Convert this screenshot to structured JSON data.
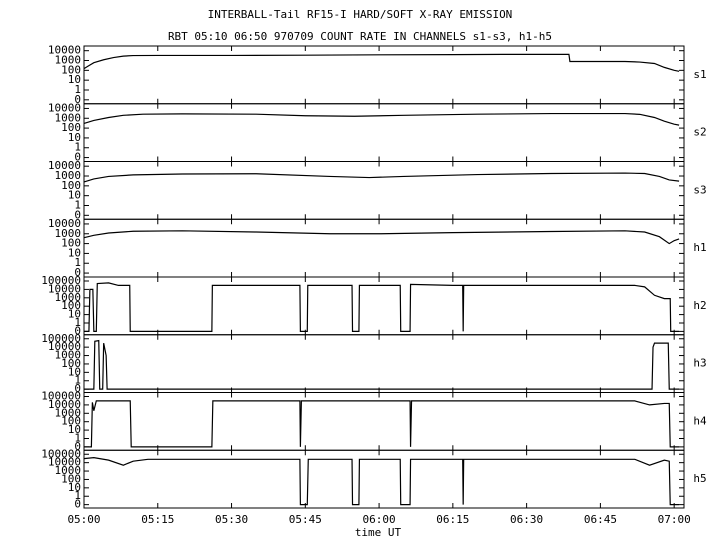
{
  "chart_data": {
    "type": "line",
    "title": "INTERBALL-Tail RF15-I HARD/SOFT X-RAY EMISSION",
    "subtitle": "RBT 05:10 06:50 970709  COUNT RATE IN CHANNELS s1-s3, h1-h5",
    "xlabel": "time UT",
    "yscale": "log",
    "color": "#000000",
    "xlim": [
      300,
      422
    ],
    "xticks": [
      {
        "value": 300,
        "label": "05:00"
      },
      {
        "value": 315,
        "label": "05:15"
      },
      {
        "value": 330,
        "label": "05:30"
      },
      {
        "value": 345,
        "label": "05:45"
      },
      {
        "value": 360,
        "label": "06:00"
      },
      {
        "value": 375,
        "label": "06:15"
      },
      {
        "value": 390,
        "label": "06:30"
      },
      {
        "value": 405,
        "label": "06:45"
      },
      {
        "value": 420,
        "label": "07:00"
      }
    ],
    "panels": [
      {
        "name": "s1",
        "ylim": [
          0,
          30000
        ],
        "yticks": [
          0,
          1,
          10,
          100,
          1000,
          10000
        ],
        "x": [
          300,
          301,
          302,
          304,
          306,
          308,
          310,
          315,
          320,
          330,
          345,
          360,
          375,
          385,
          398.6,
          398.8,
          410,
          413,
          416,
          418,
          420,
          421
        ],
        "values": [
          150,
          300,
          600,
          1200,
          2000,
          2800,
          3200,
          3300,
          3300,
          3300,
          3500,
          3800,
          4000,
          4200,
          4300,
          800,
          800,
          700,
          500,
          200,
          100,
          80
        ]
      },
      {
        "name": "s2",
        "ylim": [
          0,
          30000
        ],
        "yticks": [
          0,
          1,
          10,
          100,
          1000,
          10000
        ],
        "x": [
          300,
          302,
          305,
          308,
          312,
          320,
          335,
          345,
          355,
          365,
          380,
          395,
          410,
          413,
          416,
          418,
          420,
          421
        ],
        "values": [
          300,
          600,
          1200,
          2000,
          2600,
          2800,
          2600,
          1800,
          1600,
          2000,
          2600,
          3000,
          3000,
          2500,
          1200,
          500,
          250,
          200
        ]
      },
      {
        "name": "s3",
        "ylim": [
          0,
          30000
        ],
        "yticks": [
          0,
          1,
          10,
          100,
          1000,
          10000
        ],
        "x": [
          300,
          302,
          305,
          310,
          320,
          335,
          350,
          358,
          365,
          380,
          395,
          410,
          414,
          417,
          419,
          421
        ],
        "values": [
          250,
          500,
          900,
          1300,
          1600,
          1700,
          900,
          700,
          900,
          1400,
          1800,
          2000,
          1800,
          900,
          400,
          300
        ]
      },
      {
        "name": "h1",
        "ylim": [
          0,
          30000
        ],
        "yticks": [
          0,
          1,
          10,
          100,
          1000,
          10000
        ],
        "x": [
          300,
          302,
          305,
          310,
          320,
          335,
          350,
          360,
          375,
          395,
          410,
          414,
          417,
          419,
          420,
          421
        ],
        "values": [
          400,
          700,
          1200,
          1800,
          2000,
          1500,
          1000,
          1000,
          1300,
          1700,
          2000,
          1500,
          500,
          100,
          200,
          300
        ]
      },
      {
        "name": "h2",
        "ylim": [
          0,
          300000
        ],
        "yticks": [
          0,
          1,
          10,
          100,
          1000,
          10000,
          100000
        ],
        "x": [
          300,
          301,
          301.2,
          301.8,
          302,
          302.5,
          302.7,
          305,
          307,
          309.3,
          309.4,
          326,
          326.1,
          343.9,
          344,
          345.4,
          345.5,
          354.5,
          354.6,
          355.9,
          356,
          364.3,
          364.4,
          366.3,
          366.4,
          375,
          377,
          377.1,
          377.2,
          412,
          414,
          416,
          418,
          419.2,
          419.3,
          421
        ],
        "values": [
          0,
          0,
          10000,
          10000,
          0,
          0,
          50000,
          60000,
          30000,
          30000,
          0,
          0,
          30000,
          30000,
          0,
          0,
          30000,
          30000,
          0,
          0,
          30000,
          30000,
          0,
          0,
          40000,
          30000,
          30000,
          0,
          30000,
          30000,
          20000,
          2000,
          800,
          800,
          0,
          0
        ]
      },
      {
        "name": "h3",
        "ylim": [
          0,
          300000
        ],
        "yticks": [
          0,
          1,
          10,
          100,
          1000,
          10000,
          100000
        ],
        "x": [
          300,
          302,
          302.2,
          303,
          303.2,
          303.8,
          304,
          304.5,
          304.7,
          415.5,
          415.7,
          416,
          418.8,
          419,
          421
        ],
        "values": [
          0,
          0,
          50000,
          60000,
          0,
          0,
          30000,
          1000,
          0,
          0,
          10000,
          30000,
          30000,
          0,
          0
        ]
      },
      {
        "name": "h4",
        "ylim": [
          0,
          300000
        ],
        "yticks": [
          0,
          1,
          10,
          100,
          1000,
          10000,
          100000
        ],
        "x": [
          300,
          301.5,
          301.7,
          302,
          302.5,
          309.4,
          309.6,
          326,
          326.2,
          343.9,
          344,
          344.2,
          366.3,
          366.4,
          366.6,
          412,
          415,
          418,
          419,
          419.2,
          421
        ],
        "values": [
          0,
          0,
          20000,
          2000,
          30000,
          30000,
          0,
          0,
          30000,
          30000,
          0,
          30000,
          30000,
          0,
          30000,
          30000,
          10000,
          15000,
          15000,
          0,
          0
        ]
      },
      {
        "name": "h5",
        "ylim": [
          0,
          300000
        ],
        "yticks": [
          0,
          1,
          10,
          100,
          1000,
          10000,
          100000
        ],
        "x": [
          300,
          302,
          305,
          308,
          310,
          313,
          343.9,
          344,
          345.4,
          345.6,
          354.5,
          354.6,
          355.9,
          356,
          364.3,
          364.4,
          366.3,
          366.4,
          377,
          377.1,
          377.2,
          412,
          415,
          418,
          419,
          419.2,
          421
        ],
        "values": [
          30000,
          40000,
          20000,
          5000,
          15000,
          25000,
          25000,
          0,
          0,
          25000,
          25000,
          0,
          0,
          25000,
          25000,
          0,
          0,
          25000,
          25000,
          0,
          25000,
          25000,
          5000,
          20000,
          15000,
          0,
          0
        ]
      }
    ]
  }
}
